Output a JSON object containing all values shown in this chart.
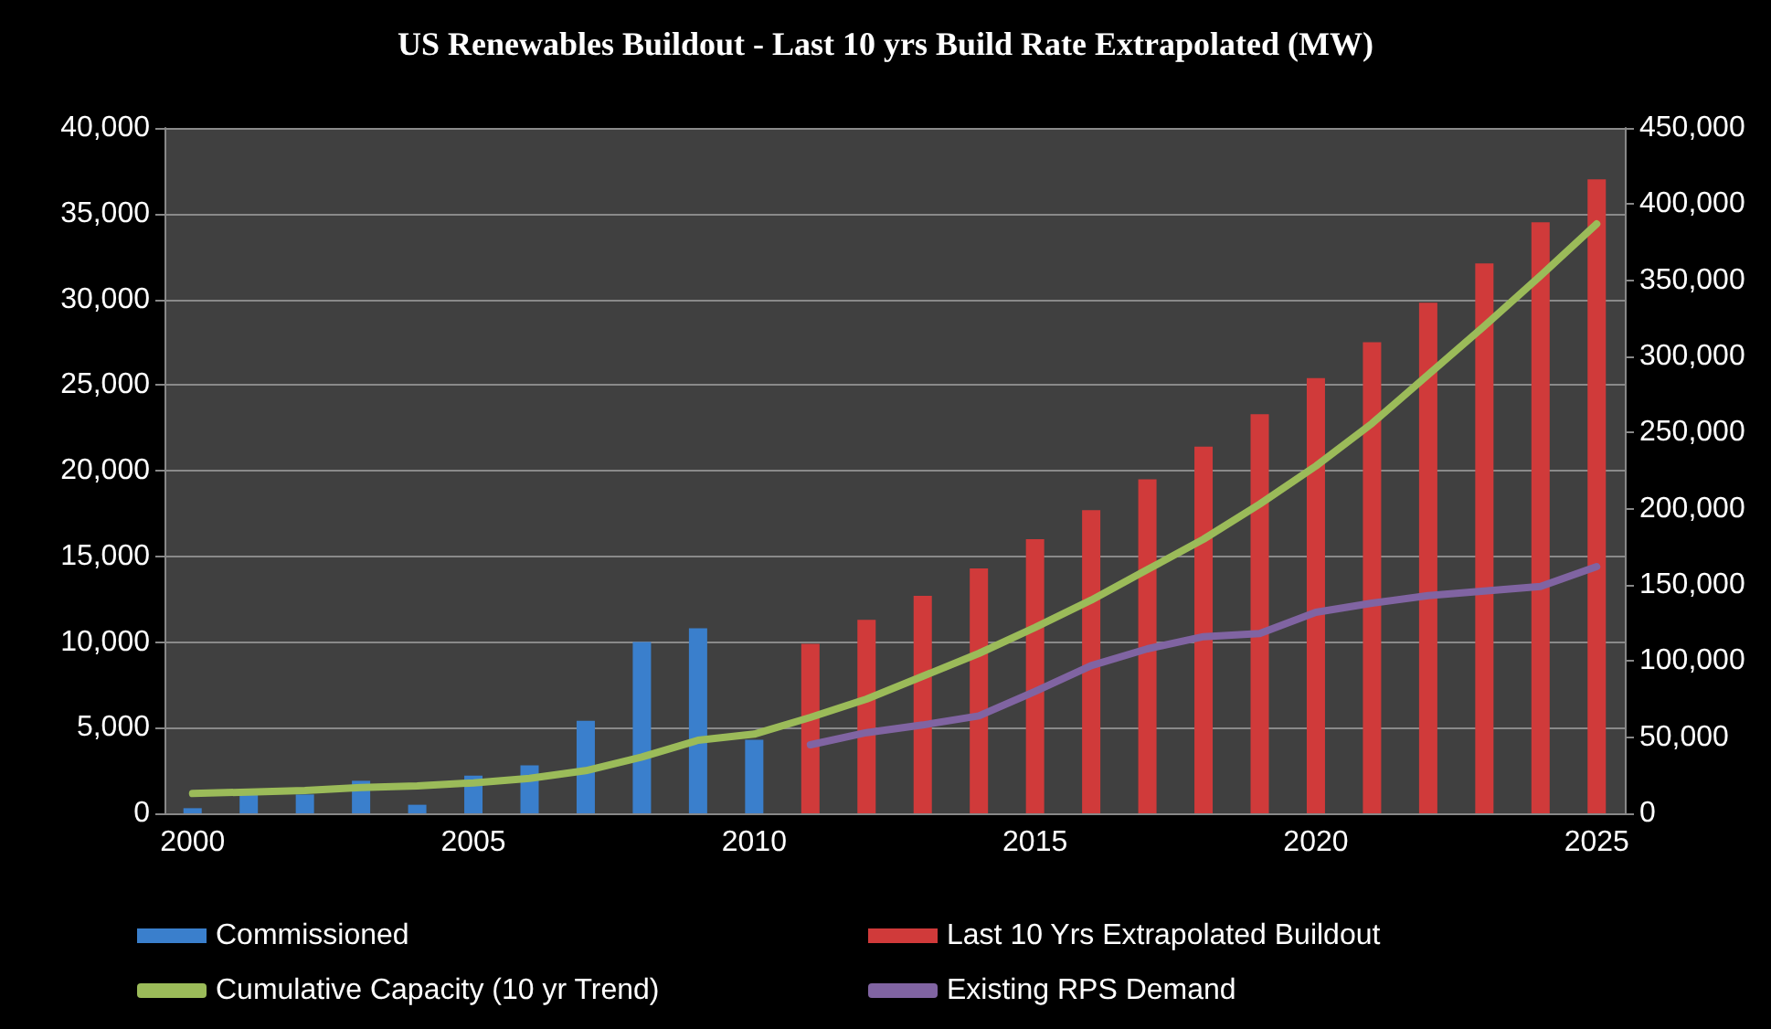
{
  "chart_data": {
    "type": "bar",
    "title": "US Renewables Buildout - Last 10 yrs Build Rate Extrapolated (MW)",
    "categories": [
      "2000",
      null,
      null,
      null,
      null,
      "2005",
      null,
      null,
      null,
      null,
      "2010",
      null,
      null,
      null,
      null,
      "2015",
      null,
      null,
      null,
      null,
      "2020",
      null,
      null,
      null,
      null,
      "2025"
    ],
    "series": [
      {
        "name": "Commissioned",
        "color": "#3a7fcc",
        "values": [
          300,
          1100,
          1100,
          1900,
          500,
          2200,
          2800,
          5400,
          10000,
          10800,
          4300,
          null,
          null,
          null,
          null,
          null,
          null,
          null,
          null,
          null,
          null,
          null,
          null,
          null,
          null,
          null
        ]
      },
      {
        "name": "Last 10 Yrs Extrapolated Buildout",
        "color": "#d03a3a",
        "values": [
          null,
          null,
          null,
          null,
          null,
          null,
          null,
          null,
          null,
          null,
          null,
          9900,
          11300,
          12700,
          14300,
          16000,
          17700,
          19500,
          21400,
          23300,
          25400,
          27500,
          29800,
          32100,
          34500,
          37000
        ]
      },
      {
        "name": "Cumulative Capacity (10 yr Trend)",
        "type": "line",
        "axis": "y2",
        "color": "#9bbb59",
        "values": [
          13000,
          14000,
          15000,
          17000,
          18000,
          20000,
          23000,
          28000,
          37000,
          48000,
          52000,
          63000,
          75000,
          90000,
          105000,
          122000,
          140000,
          160000,
          180000,
          203000,
          228000,
          256000,
          288000,
          320000,
          353000,
          387000
        ]
      },
      {
        "name": "Existing RPS Demand",
        "type": "line",
        "axis": "y2",
        "color": "#8064a2",
        "values": [
          null,
          null,
          null,
          null,
          null,
          null,
          null,
          null,
          null,
          null,
          null,
          45000,
          53000,
          58000,
          64000,
          80000,
          97000,
          108000,
          116000,
          118000,
          132000,
          138000,
          143000,
          146000,
          149000,
          162000
        ]
      }
    ],
    "ylim": [
      0,
      40000
    ],
    "yticks": [
      0,
      {
        "value": 5000,
        "label": "5,000"
      },
      {
        "value": 10000,
        "label": "10,000"
      },
      {
        "value": 15000,
        "label": "15,000"
      },
      {
        "value": 20000,
        "label": "20,000"
      },
      {
        "value": 25000,
        "label": "25,000"
      },
      {
        "value": 30000,
        "label": "30,000"
      },
      {
        "value": 35000,
        "label": "35,000"
      },
      {
        "value": 40000,
        "label": "40,000"
      }
    ],
    "y2lim": [
      0,
      450000
    ],
    "y2ticks": [
      0,
      {
        "value": 50000,
        "label": "50,000"
      },
      {
        "value": 100000,
        "label": "100,000"
      },
      {
        "value": 150000,
        "label": "150,000"
      },
      {
        "value": 200000,
        "label": "200,000"
      },
      {
        "value": 250000,
        "label": "250,000"
      },
      {
        "value": 300000,
        "label": "300,000"
      },
      {
        "value": 350000,
        "label": "350,000"
      },
      {
        "value": 400000,
        "label": "400,000"
      },
      {
        "value": 450000,
        "label": "450,000"
      }
    ],
    "grid": "y",
    "legend": "bottom",
    "marker": "none",
    "line_style": "solid"
  }
}
